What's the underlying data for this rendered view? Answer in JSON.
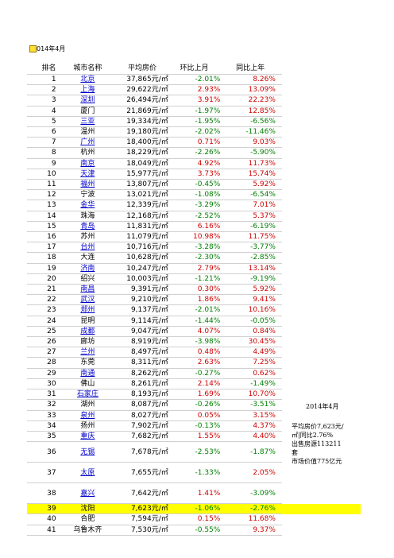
{
  "header": {
    "date_label": "014年4月"
  },
  "columns": [
    "排名",
    "城市名称",
    "平均房价",
    "环比上月",
    "同比上年"
  ],
  "rows": [
    {
      "rank": "1",
      "city": "北京",
      "price": "37,865元/㎡",
      "mom": "-2.01%",
      "yoy": "8.26%",
      "link": true
    },
    {
      "rank": "2",
      "city": "上海",
      "price": "29,622元/㎡",
      "mom": "2.93%",
      "yoy": "13.09%",
      "link": true
    },
    {
      "rank": "3",
      "city": "深圳",
      "price": "26,494元/㎡",
      "mom": "3.91%",
      "yoy": "22.23%",
      "link": true
    },
    {
      "rank": "4",
      "city": "厦门",
      "price": "21,869元/㎡",
      "mom": "-1.97%",
      "yoy": "12.85%",
      "link": false
    },
    {
      "rank": "5",
      "city": "三亚",
      "price": "19,334元/㎡",
      "mom": "-1.95%",
      "yoy": "-6.56%",
      "link": true
    },
    {
      "rank": "6",
      "city": "温州",
      "price": "19,180元/㎡",
      "mom": "-2.02%",
      "yoy": "-11.46%",
      "link": false
    },
    {
      "rank": "7",
      "city": "广州",
      "price": "18,400元/㎡",
      "mom": "0.71%",
      "yoy": "9.03%",
      "link": true
    },
    {
      "rank": "8",
      "city": "杭州",
      "price": "18,229元/㎡",
      "mom": "-2.26%",
      "yoy": "-5.90%",
      "link": false
    },
    {
      "rank": "9",
      "city": "南京",
      "price": "18,049元/㎡",
      "mom": "4.92%",
      "yoy": "11.73%",
      "link": true
    },
    {
      "rank": "10",
      "city": "天津",
      "price": "15,977元/㎡",
      "mom": "3.73%",
      "yoy": "15.74%",
      "link": true
    },
    {
      "rank": "11",
      "city": "福州",
      "price": "13,807元/㎡",
      "mom": "-0.45%",
      "yoy": "5.92%",
      "link": true
    },
    {
      "rank": "12",
      "city": "宁波",
      "price": "13,021元/㎡",
      "mom": "-1.08%",
      "yoy": "-6.54%",
      "link": false
    },
    {
      "rank": "13",
      "city": "金华",
      "price": "12,339元/㎡",
      "mom": "-3.29%",
      "yoy": "7.01%",
      "link": true
    },
    {
      "rank": "14",
      "city": "珠海",
      "price": "12,168元/㎡",
      "mom": "-2.52%",
      "yoy": "5.37%",
      "link": false
    },
    {
      "rank": "15",
      "city": "青岛",
      "price": "11,831元/㎡",
      "mom": "6.16%",
      "yoy": "-6.19%",
      "link": true
    },
    {
      "rank": "16",
      "city": "苏州",
      "price": "11,079元/㎡",
      "mom": "10.98%",
      "yoy": "11.75%",
      "link": false
    },
    {
      "rank": "17",
      "city": "台州",
      "price": "10,716元/㎡",
      "mom": "-3.28%",
      "yoy": "-3.77%",
      "link": true
    },
    {
      "rank": "18",
      "city": "大连",
      "price": "10,628元/㎡",
      "mom": "-2.30%",
      "yoy": "-2.85%",
      "link": false
    },
    {
      "rank": "19",
      "city": "济南",
      "price": "10,247元/㎡",
      "mom": "2.79%",
      "yoy": "13.14%",
      "link": true
    },
    {
      "rank": "20",
      "city": "绍兴",
      "price": "10,003元/㎡",
      "mom": "-1.21%",
      "yoy": "-9.19%",
      "link": false
    },
    {
      "rank": "21",
      "city": "南昌",
      "price": "9,391元/㎡",
      "mom": "0.30%",
      "yoy": "5.92%",
      "link": true
    },
    {
      "rank": "22",
      "city": "武汉",
      "price": "9,210元/㎡",
      "mom": "1.86%",
      "yoy": "9.41%",
      "link": true
    },
    {
      "rank": "23",
      "city": "郑州",
      "price": "9,137元/㎡",
      "mom": "-2.01%",
      "yoy": "10.16%",
      "link": true
    },
    {
      "rank": "24",
      "city": "昆明",
      "price": "9,114元/㎡",
      "mom": "-1.44%",
      "yoy": "-0.05%",
      "link": false
    },
    {
      "rank": "25",
      "city": "成都",
      "price": "9,047元/㎡",
      "mom": "4.07%",
      "yoy": "0.84%",
      "link": true
    },
    {
      "rank": "26",
      "city": "廊坊",
      "price": "8,919元/㎡",
      "mom": "-3.98%",
      "yoy": "30.45%",
      "link": false
    },
    {
      "rank": "27",
      "city": "兰州",
      "price": "8,497元/㎡",
      "mom": "0.48%",
      "yoy": "4.49%",
      "link": true
    },
    {
      "rank": "28",
      "city": "东莞",
      "price": "8,311元/㎡",
      "mom": "2.63%",
      "yoy": "7.25%",
      "link": false
    },
    {
      "rank": "29",
      "city": "南通",
      "price": "8,262元/㎡",
      "mom": "-0.27%",
      "yoy": "0.62%",
      "link": true
    },
    {
      "rank": "30",
      "city": "佛山",
      "price": "8,261元/㎡",
      "mom": "2.14%",
      "yoy": "-1.49%",
      "link": false
    },
    {
      "rank": "31",
      "city": "石家庄",
      "price": "8,193元/㎡",
      "mom": "1.69%",
      "yoy": "10.70%",
      "link": true
    },
    {
      "rank": "32",
      "city": "湖州",
      "price": "8,087元/㎡",
      "mom": "-0.26%",
      "yoy": "-3.51%",
      "link": false
    },
    {
      "rank": "33",
      "city": "泉州",
      "price": "8,027元/㎡",
      "mom": "0.05%",
      "yoy": "3.15%",
      "link": true
    },
    {
      "rank": "34",
      "city": "扬州",
      "price": "7,902元/㎡",
      "mom": "-0.13%",
      "yoy": "4.37%",
      "link": false
    },
    {
      "rank": "35",
      "city": "重庆",
      "price": "7,682元/㎡",
      "mom": "1.55%",
      "yoy": "4.40%",
      "link": true
    }
  ],
  "tall_rows": [
    {
      "rank": "36",
      "city": "无锡",
      "price": "7,678元/㎡",
      "mom": "-2.53%",
      "yoy": "-1.87%",
      "link": true
    },
    {
      "rank": "37",
      "city": "太原",
      "price": "7,655元/㎡",
      "mom": "-1.33%",
      "yoy": "2.05%",
      "link": true
    },
    {
      "rank": "38",
      "city": "嘉兴",
      "price": "7,642元/㎡",
      "mom": "1.41%",
      "yoy": "-3.09%",
      "link": true
    }
  ],
  "tail_rows": [
    {
      "rank": "39",
      "city": "沈阳",
      "price": "7,623元/㎡",
      "mom": "-1.06%",
      "yoy": "-2.76%",
      "link": false,
      "highlight": true
    },
    {
      "rank": "40",
      "city": "合肥",
      "price": "7,594元/㎡",
      "mom": "0.15%",
      "yoy": "11.68%",
      "link": false
    },
    {
      "rank": "41",
      "city": "乌鲁木齐",
      "price": "7,530元/㎡",
      "mom": "-0.55%",
      "yoy": "9.37%",
      "link": false
    }
  ],
  "side": {
    "date": "2014年4月",
    "lines": [
      "平均房价7,623元/㎡|同比2.76%",
      "出售房源113211套",
      "市场价值775亿元"
    ]
  },
  "colors": {
    "positive": "#d00000",
    "negative": "#008000",
    "link": "#0000cc",
    "highlight": "#ffff00"
  }
}
